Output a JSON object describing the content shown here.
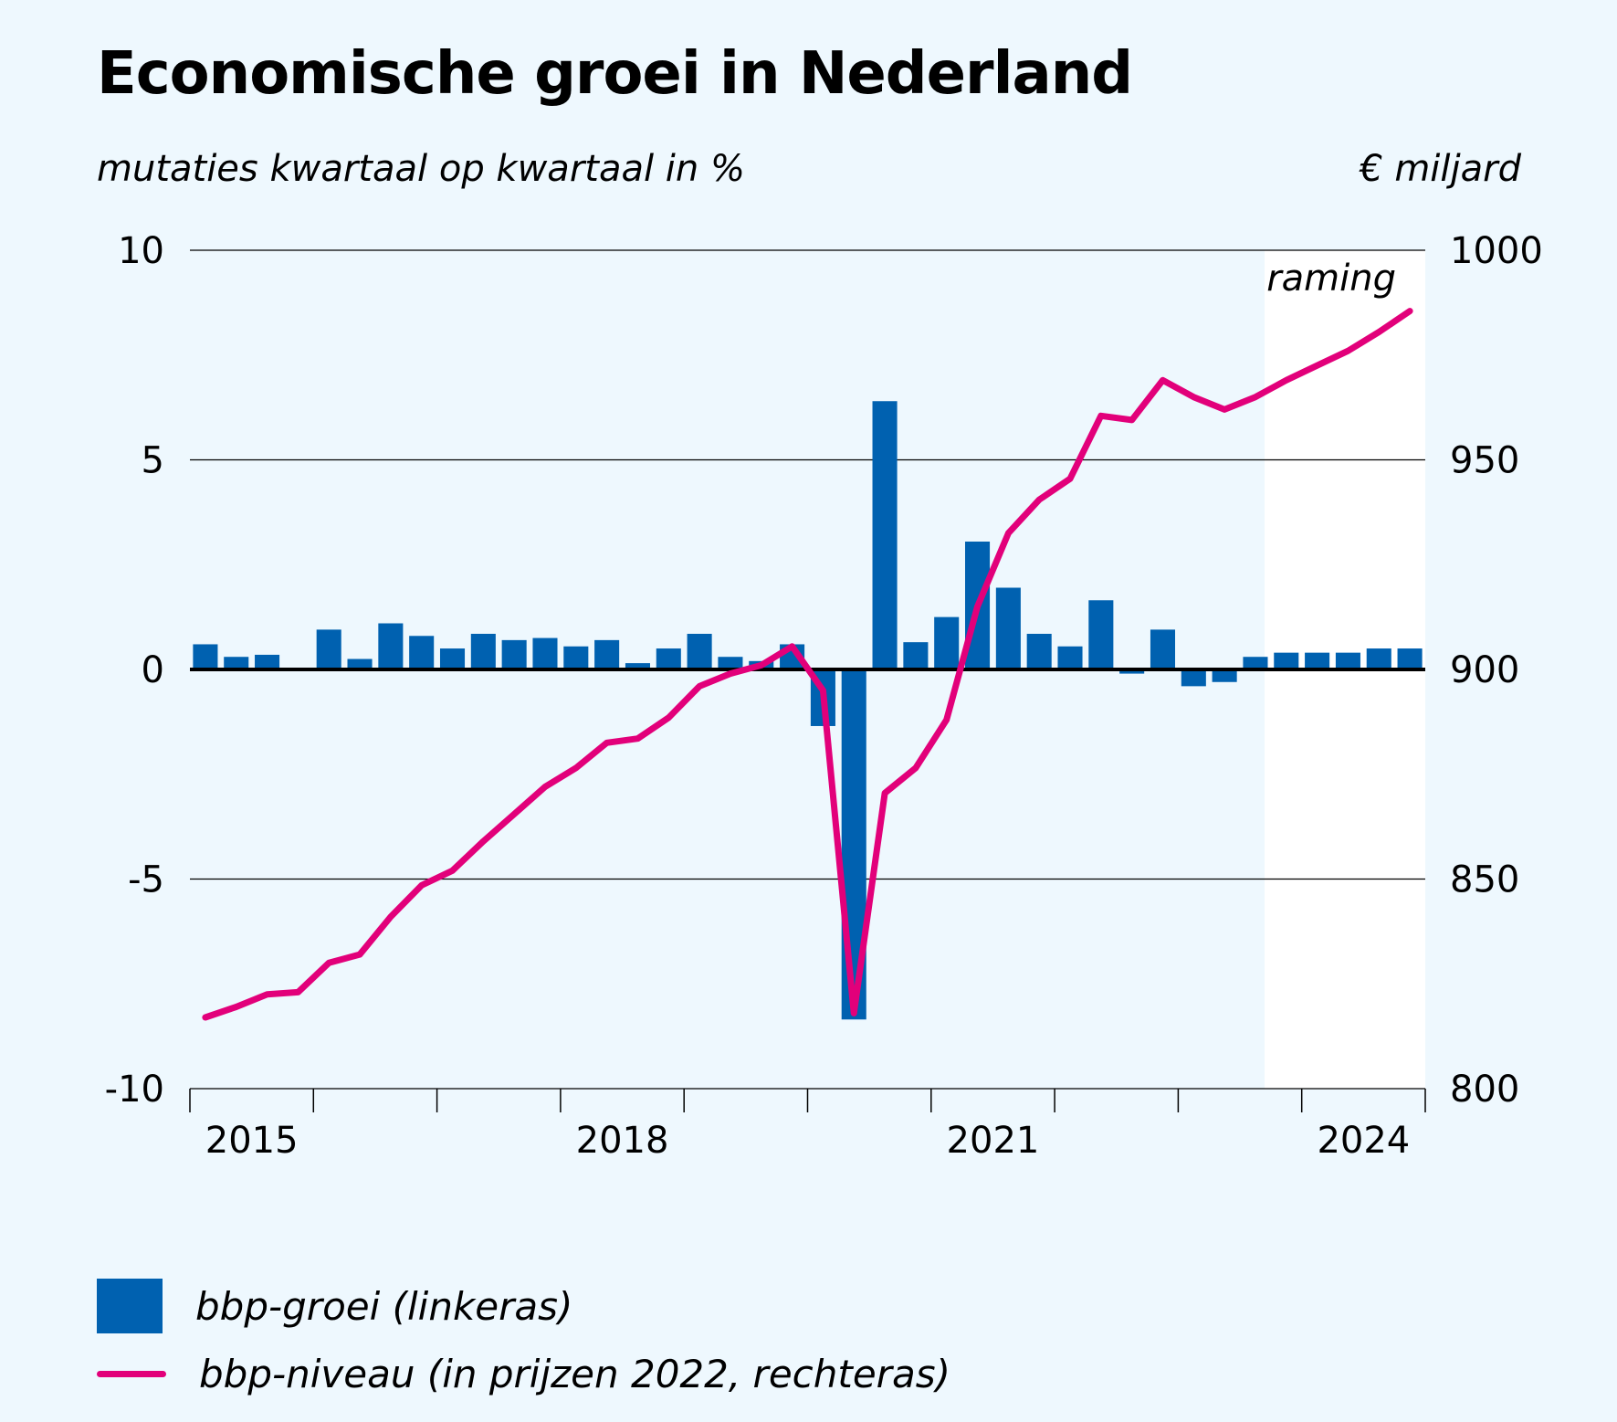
{
  "title": "Economische groei in Nederland",
  "subtitle_left": "mutaties kwartaal op kwartaal in %",
  "subtitle_right": "€ miljard",
  "forecast_label": "raming",
  "colors": {
    "bars": "#0061b0",
    "line": "#e2007a",
    "background": "#eef8fe",
    "forecast_area": "#ffffff"
  },
  "legend": {
    "bars_label": "bbp-groei (linkeras)",
    "line_label": "bbp-niveau (in prijzen 2022, rechteras)"
  },
  "chart_data": {
    "type": "bar+line",
    "title": "Economische groei in Nederland",
    "x_label": "",
    "x_tick_labels": [
      {
        "label": "2015",
        "year": 2015
      },
      {
        "label": "2018",
        "year": 2018
      },
      {
        "label": "2021",
        "year": 2021
      },
      {
        "label": "2024",
        "year": 2024
      }
    ],
    "start_year": 2015,
    "end_year": 2025,
    "forecast_start_quarter_index": 35,
    "left_axis": {
      "label": "mutaties kwartaal op kwartaal in %",
      "min": -10,
      "max": 10,
      "ticks": [
        10,
        5,
        0,
        -5,
        -10
      ]
    },
    "right_axis": {
      "label": "€ miljard",
      "min": 800,
      "max": 1000,
      "ticks": [
        1000,
        950,
        900,
        850,
        800
      ]
    },
    "quarters": [
      "2015-Q1",
      "2015-Q2",
      "2015-Q3",
      "2015-Q4",
      "2016-Q1",
      "2016-Q2",
      "2016-Q3",
      "2016-Q4",
      "2017-Q1",
      "2017-Q2",
      "2017-Q3",
      "2017-Q4",
      "2018-Q1",
      "2018-Q2",
      "2018-Q3",
      "2018-Q4",
      "2019-Q1",
      "2019-Q2",
      "2019-Q3",
      "2019-Q4",
      "2020-Q1",
      "2020-Q2",
      "2020-Q3",
      "2020-Q4",
      "2021-Q1",
      "2021-Q2",
      "2021-Q3",
      "2021-Q4",
      "2022-Q1",
      "2022-Q2",
      "2022-Q3",
      "2022-Q4",
      "2023-Q1",
      "2023-Q2",
      "2023-Q3",
      "2023-Q4",
      "2024-Q1",
      "2024-Q2",
      "2024-Q3",
      "2024-Q4"
    ],
    "series": [
      {
        "name": "bbp-groei (linkeras)",
        "type": "bar",
        "axis": "left",
        "values": [
          0.6,
          0.3,
          0.35,
          0.0,
          0.95,
          0.25,
          1.1,
          0.8,
          0.5,
          0.85,
          0.7,
          0.75,
          0.55,
          0.7,
          0.15,
          0.5,
          0.85,
          0.3,
          0.2,
          0.6,
          -1.35,
          -8.35,
          6.4,
          0.65,
          1.25,
          3.05,
          1.95,
          0.85,
          0.55,
          1.65,
          -0.1,
          0.95,
          -0.4,
          -0.3,
          0.3,
          0.4,
          0.4,
          0.4,
          0.5,
          0.5
        ]
      },
      {
        "name": "bbp-niveau (in prijzen 2022, rechteras)",
        "type": "line",
        "axis": "right",
        "values": [
          817,
          819.5,
          822.5,
          823,
          830,
          832,
          841,
          848.5,
          852,
          859,
          865.5,
          872,
          876.5,
          882.5,
          883.5,
          888.5,
          896,
          899,
          901,
          905.5,
          895,
          818,
          870.5,
          876.5,
          888,
          915,
          932.5,
          940.5,
          945.5,
          960.5,
          959.5,
          969,
          965,
          962,
          965,
          969,
          972.5,
          976,
          980.5,
          985.5
        ]
      }
    ]
  }
}
